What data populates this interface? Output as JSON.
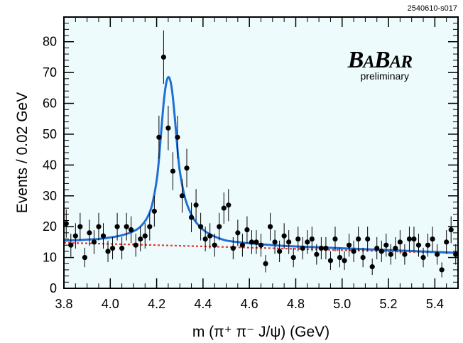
{
  "figure_id": "2540610-s017",
  "logo": {
    "text": "BaBar",
    "caption": "preliminary"
  },
  "colors": {
    "plot_bg": "#eefbfd",
    "fit_total": "#1f6fd6",
    "fit_background": "#e8332a",
    "points": "#000000"
  },
  "chart_data": {
    "type": "scatter",
    "xlabel": "m (π⁺ π⁻ J/ψ) (GeV)",
    "ylabel": "Events / 0.02 GeV",
    "xlim": [
      3.8,
      5.5
    ],
    "ylim": [
      0,
      88
    ],
    "x_ticks": [
      3.8,
      4.0,
      4.2,
      4.4,
      4.6,
      4.8,
      5.0,
      5.2,
      5.4
    ],
    "x_tick_labels": [
      "3.8",
      "4.0",
      "4.2",
      "4.4",
      "4.6",
      "4.8",
      "5.0",
      "5.2",
      "5.4"
    ],
    "y_ticks": [
      0,
      10,
      20,
      30,
      40,
      50,
      60,
      70,
      80
    ],
    "y_tick_labels": [
      "0",
      "10",
      "20",
      "30",
      "40",
      "50",
      "60",
      "70",
      "80"
    ],
    "grid": false,
    "series": [
      {
        "kind": "data-points-with-errors",
        "x": [
          3.81,
          3.83,
          3.85,
          3.87,
          3.89,
          3.91,
          3.93,
          3.95,
          3.97,
          3.99,
          4.01,
          4.03,
          4.05,
          4.07,
          4.09,
          4.11,
          4.13,
          4.15,
          4.17,
          4.19,
          4.21,
          4.23,
          4.25,
          4.27,
          4.29,
          4.31,
          4.33,
          4.35,
          4.37,
          4.39,
          4.41,
          4.43,
          4.45,
          4.47,
          4.49,
          4.51,
          4.53,
          4.55,
          4.57,
          4.59,
          4.61,
          4.63,
          4.65,
          4.67,
          4.69,
          4.71,
          4.73,
          4.75,
          4.77,
          4.79,
          4.81,
          4.83,
          4.85,
          4.87,
          4.89,
          4.91,
          4.93,
          4.95,
          4.97,
          4.99,
          5.01,
          5.03,
          5.05,
          5.07,
          5.09,
          5.11,
          5.13,
          5.15,
          5.17,
          5.19,
          5.21,
          5.23,
          5.25,
          5.27,
          5.29,
          5.31,
          5.33,
          5.35,
          5.37,
          5.39,
          5.41,
          5.43,
          5.45,
          5.47,
          5.49
        ],
        "y": [
          21,
          14,
          17,
          20,
          10,
          18,
          15,
          20,
          17,
          12,
          13,
          20,
          13,
          20,
          19,
          14,
          16,
          17,
          20,
          25,
          49,
          75,
          52,
          38,
          49,
          30,
          39,
          23,
          27,
          20,
          16,
          17,
          14,
          20,
          26,
          27,
          13,
          18,
          14,
          19,
          15,
          15,
          14,
          8,
          20,
          15,
          12,
          17,
          15,
          10,
          16,
          13,
          15,
          16,
          11,
          13,
          13,
          9,
          16,
          10,
          9,
          14,
          12,
          16,
          10,
          16,
          7,
          13,
          12,
          14,
          11,
          13,
          15,
          11,
          16,
          16,
          14,
          10,
          14,
          16,
          11,
          6,
          15,
          19,
          11
        ]
      },
      {
        "kind": "fit-total",
        "x": [
          3.8,
          3.85,
          3.9,
          3.95,
          4.0,
          4.05,
          4.1,
          4.13,
          4.16,
          4.18,
          4.2,
          4.21,
          4.22,
          4.23,
          4.24,
          4.25,
          4.26,
          4.27,
          4.28,
          4.29,
          4.3,
          4.32,
          4.34,
          4.36,
          4.38,
          4.4,
          4.43,
          4.46,
          4.5,
          4.55,
          4.6,
          4.7,
          4.8,
          4.9,
          5.0,
          5.1,
          5.2,
          5.3,
          5.4,
          5.5
        ],
        "y": [
          15.5,
          15.6,
          15.8,
          16.0,
          16.5,
          17.2,
          18.5,
          20,
          23,
          27,
          35,
          42,
          51,
          60,
          66,
          68.5,
          67,
          62,
          54,
          45,
          38,
          30,
          25.5,
          22.5,
          20.5,
          19,
          17.5,
          16.5,
          15.5,
          15.0,
          14.6,
          14.0,
          13.6,
          13.3,
          13.0,
          12.7,
          12.4,
          12.1,
          11.8,
          11.5
        ]
      },
      {
        "kind": "fit-background",
        "x": [
          3.8,
          4.2,
          4.6,
          5.0,
          5.5
        ],
        "y": [
          14.8,
          14.0,
          13.2,
          12.4,
          11.4
        ]
      }
    ]
  }
}
